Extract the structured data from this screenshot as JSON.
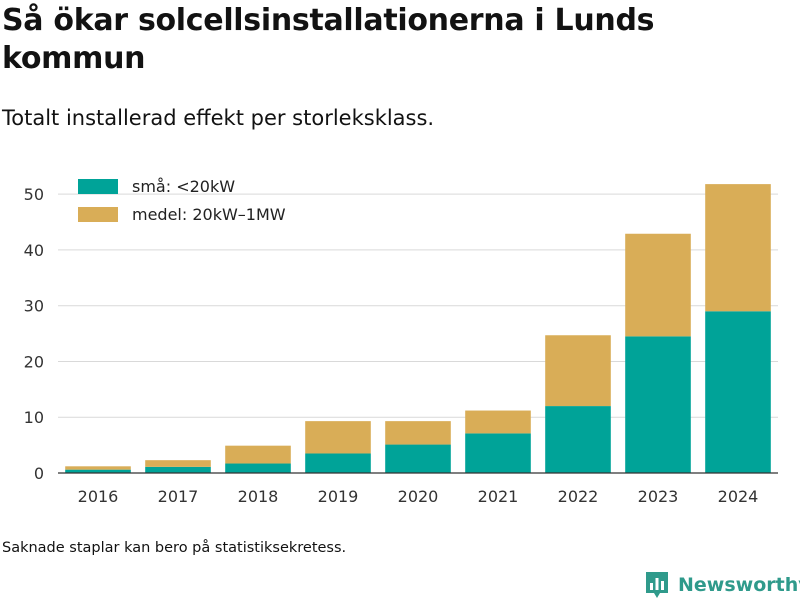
{
  "title": "Så ökar solcellsinstallationerna i Lunds kommun",
  "subtitle": "Totalt installerad effekt per storleksklass.",
  "footnote": "Saknade staplar kan bero på statistiksekretess.",
  "brand": {
    "name": "Newsworthy",
    "icon": "chart-logo-icon",
    "color": "#2f9a8b"
  },
  "chart_data": {
    "type": "bar",
    "stacked": true,
    "categories": [
      "2016",
      "2017",
      "2018",
      "2019",
      "2020",
      "2021",
      "2022",
      "2023",
      "2024"
    ],
    "series": [
      {
        "name": "små: <20kW",
        "color": "#00a398",
        "values": [
          0.6,
          1.1,
          1.7,
          3.5,
          5.1,
          7.1,
          12.0,
          24.5,
          29.0
        ]
      },
      {
        "name": "medel: 20kW–1MW",
        "color": "#d9ad57",
        "values": [
          0.6,
          1.2,
          3.2,
          5.8,
          4.2,
          4.1,
          12.7,
          18.4,
          22.8
        ]
      }
    ],
    "ylim": [
      0,
      52
    ],
    "yticks": [
      0,
      10,
      20,
      30,
      40,
      50
    ],
    "xlabel": "",
    "ylabel": "",
    "grid": true,
    "legend": "top-left"
  }
}
